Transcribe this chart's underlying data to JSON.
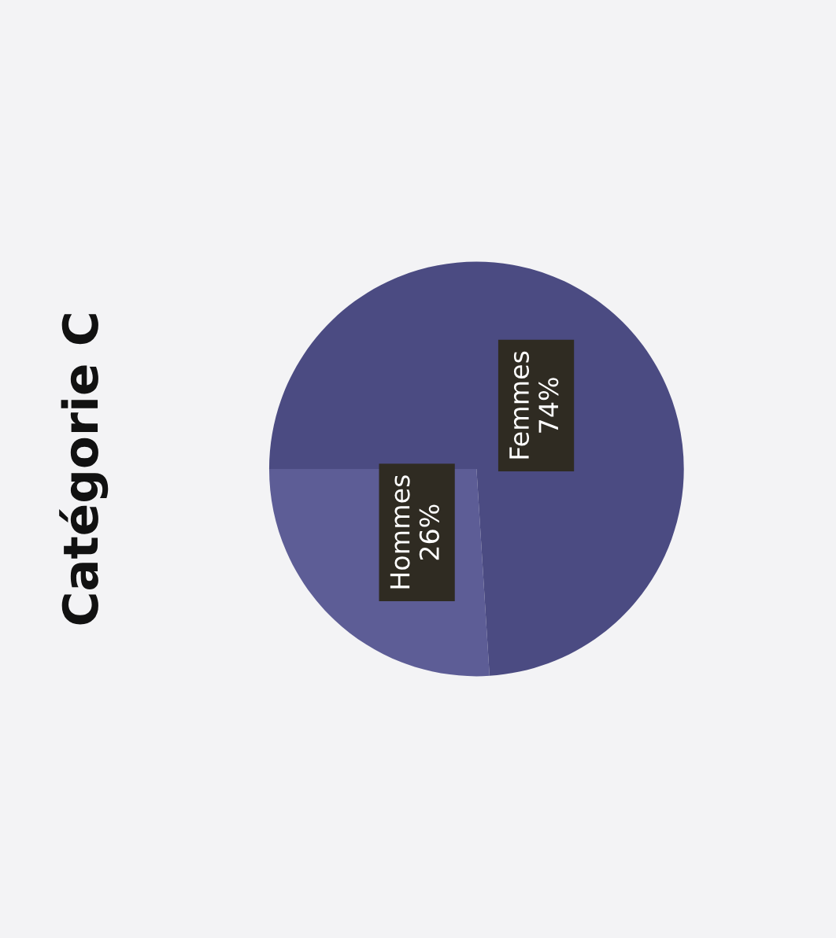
{
  "chart_data": {
    "type": "pie",
    "title": "Catégorie C",
    "categories": [
      "Hommes",
      "Femmes"
    ],
    "values": [
      26,
      74
    ],
    "colors": [
      "#5d5d96",
      "#4b4b82"
    ],
    "value_labels": [
      "26%",
      "74%"
    ]
  }
}
